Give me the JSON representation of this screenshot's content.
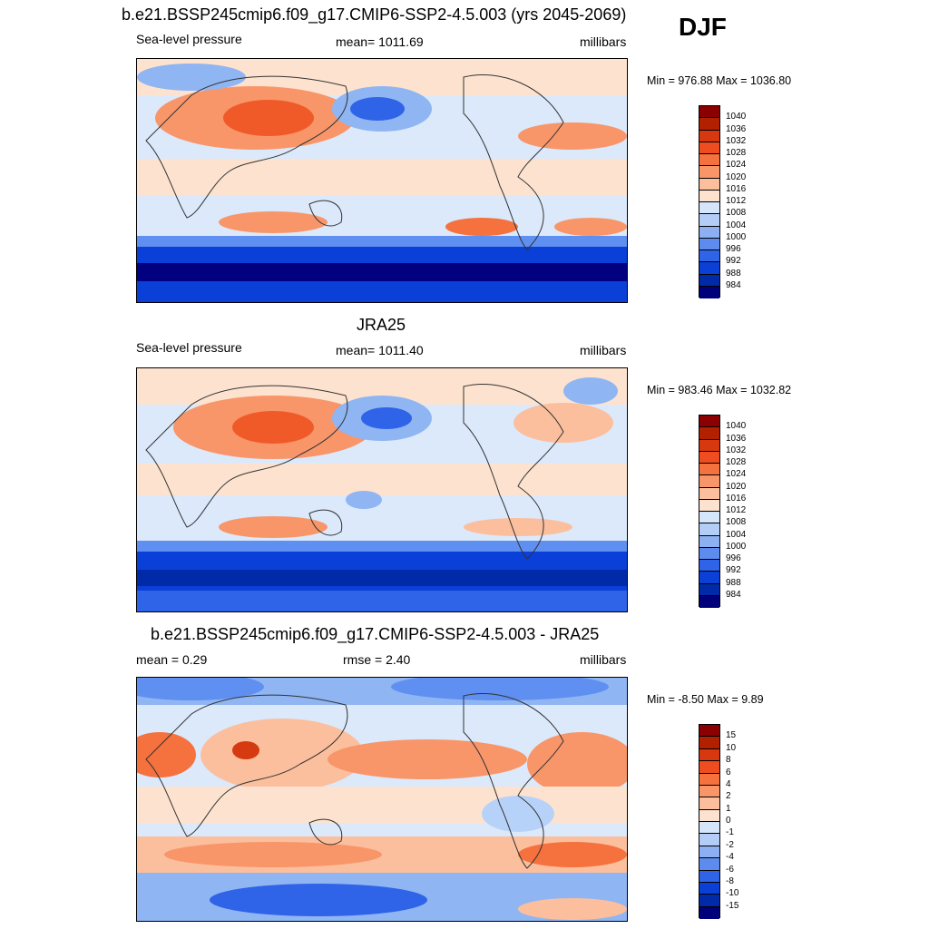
{
  "header": {
    "title": "b.e21.BSSP245cmip6.f09_g17.CMIP6-SSP2-4.5.003 (yrs 2045-2069)",
    "season": "DJF"
  },
  "panels": [
    {
      "title": "",
      "left_label": "Sea-level pressure",
      "center_label": "mean= 1011.69",
      "right_label": "millibars",
      "minmax": "Min = 976.88 Max = 1036.80",
      "colorbar_labels": [
        "1040",
        "1036",
        "1032",
        "1028",
        "1024",
        "1020",
        "1016",
        "1012",
        "1008",
        "1004",
        "1000",
        "996",
        "992",
        "988",
        "984"
      ]
    },
    {
      "title": "JRA25",
      "left_label": "Sea-level pressure",
      "center_label": "mean= 1011.40",
      "right_label": "millibars",
      "minmax": "Min = 983.46 Max = 1032.82",
      "colorbar_labels": [
        "1040",
        "1036",
        "1032",
        "1028",
        "1024",
        "1020",
        "1016",
        "1012",
        "1008",
        "1004",
        "1000",
        "996",
        "992",
        "988",
        "984"
      ]
    },
    {
      "title": "b.e21.BSSP245cmip6.f09_g17.CMIP6-SSP2-4.5.003 - JRA25",
      "left_label": "mean =   0.29",
      "center_label": "rmse =   2.40",
      "right_label": "millibars",
      "minmax": "Min =  -8.50 Max =   9.89",
      "colorbar_labels": [
        "15",
        "10",
        "8",
        "6",
        "4",
        "2",
        "1",
        "0",
        "-1",
        "-2",
        "-4",
        "-6",
        "-8",
        "-10",
        "-15"
      ]
    }
  ],
  "colorbar_colors": [
    "#8b0000",
    "#b22000",
    "#d63a10",
    "#f04e1e",
    "#f5713e",
    "#f8966a",
    "#fbbf9e",
    "#fde3cf",
    "#ffffff",
    "#dbe9fb",
    "#b7d2f8",
    "#8fb5f2",
    "#5f8ff0",
    "#2f63e8",
    "#0a3fd8",
    "#002aa8",
    "#000080"
  ],
  "colorbar_colors_ordered_top_to_bottom": [
    "#8b0000",
    "#b22000",
    "#d83810",
    "#ef4c20",
    "#f5713e",
    "#f8966a",
    "#fbbf9e",
    "#fde3cf",
    "#d5e6fb",
    "#b3cdf7",
    "#8cb0f2",
    "#5d8cee",
    "#2f63e8",
    "#0b40d6",
    "#002aa8",
    "#00007a"
  ]
}
